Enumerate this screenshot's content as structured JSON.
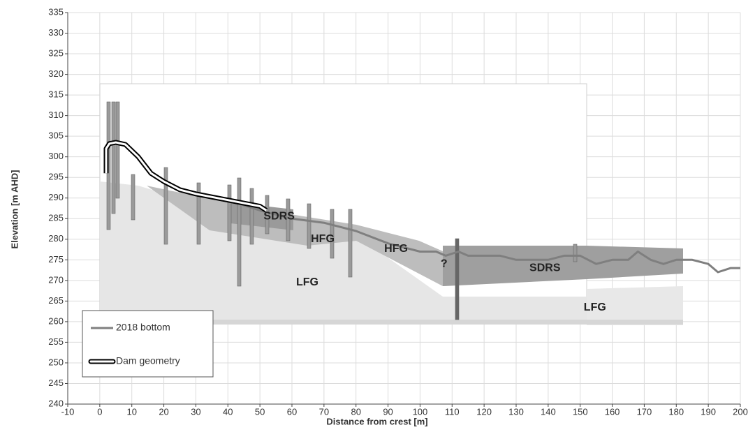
{
  "chart_data": {
    "type": "line",
    "xlabel": "Distance from crest [m]",
    "ylabel": "Elevation [m AHD]",
    "xlim": [
      -10,
      200
    ],
    "xticks": [
      -10,
      0,
      10,
      20,
      30,
      40,
      50,
      60,
      70,
      80,
      90,
      100,
      110,
      120,
      130,
      140,
      150,
      160,
      170,
      180,
      190,
      200
    ],
    "ylim": [
      240,
      335
    ],
    "yticks": [
      240,
      245,
      250,
      255,
      260,
      265,
      270,
      275,
      280,
      285,
      290,
      295,
      300,
      305,
      310,
      315,
      320,
      325,
      330,
      335
    ],
    "grid": true,
    "legend": "lower left",
    "series": [
      {
        "name": "2018 bottom",
        "color": "#7f7f7f",
        "outline": false,
        "x": [
          30,
          40,
          50,
          60,
          70,
          80,
          90,
          100,
          105,
          108,
          112,
          115,
          120,
          125,
          130,
          140,
          145,
          150,
          155,
          160,
          165,
          168,
          172,
          176,
          180,
          185,
          190,
          193,
          197,
          200
        ],
        "values": [
          291,
          289.5,
          287,
          285,
          284,
          282,
          279,
          277,
          277,
          276,
          277,
          276,
          276,
          276,
          275,
          275,
          276,
          276,
          274,
          275,
          275,
          277,
          275,
          274,
          275,
          275,
          274,
          272,
          273,
          273
        ]
      },
      {
        "name": "Dam geometry",
        "color": "#000000",
        "outline": true,
        "x": [
          2,
          2,
          3,
          5,
          8,
          12,
          16,
          20,
          25,
          30,
          40,
          50,
          52
        ],
        "values": [
          296,
          302,
          303.2,
          303.5,
          303,
          300,
          296,
          294,
          292,
          291,
          289.5,
          288,
          287
        ]
      }
    ],
    "annotations": [
      {
        "text": "SDRS",
        "x": 56,
        "y": 285.5
      },
      {
        "text": "HFG",
        "x": 69.6,
        "y": 280
      },
      {
        "text": "HFG",
        "x": 92.5,
        "y": 277.6
      },
      {
        "text": "LFG",
        "x": 64.8,
        "y": 269.5
      },
      {
        "text": "?",
        "x": 107.5,
        "y": 274
      },
      {
        "text": "SDRS",
        "x": 139,
        "y": 273
      },
      {
        "text": "LFG",
        "x": 154.6,
        "y": 263.4
      }
    ]
  }
}
